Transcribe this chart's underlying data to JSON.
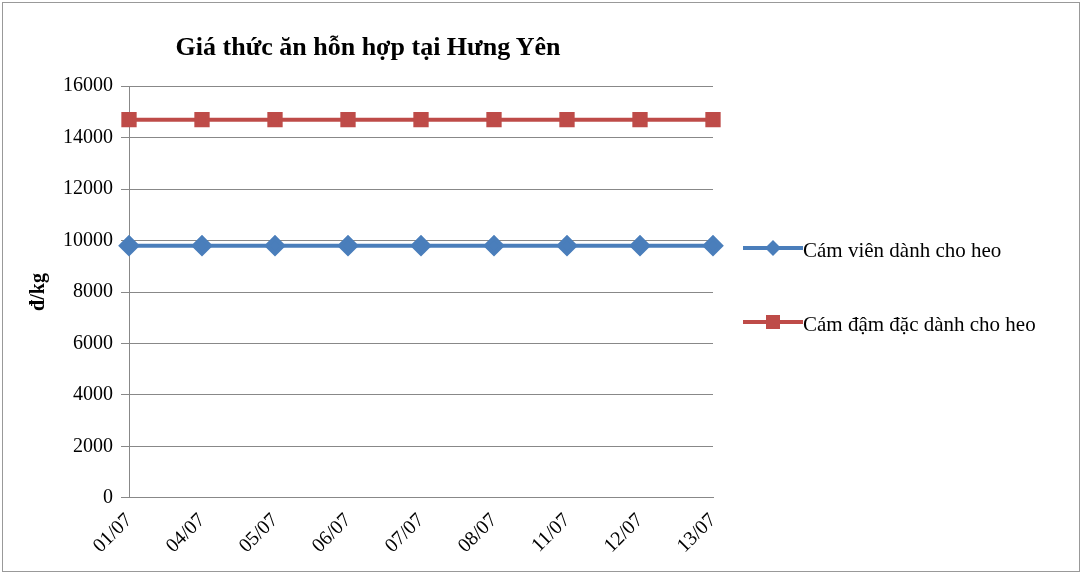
{
  "chart_data": {
    "type": "line",
    "title": "Giá thức ăn hỗn hợp tại Hưng Yên",
    "ylabel": "đ/kg",
    "categories": [
      "01/07",
      "04/07",
      "05/07",
      "06/07",
      "07/07",
      "08/07",
      "11/07",
      "12/07",
      "13/07"
    ],
    "series": [
      {
        "name": "Cám viên dành cho heo",
        "color": "#4a7ebb",
        "marker": "diamond",
        "values": [
          9800,
          9800,
          9800,
          9800,
          9800,
          9800,
          9800,
          9800,
          9800
        ]
      },
      {
        "name": "Cám đậm đặc dành cho heo",
        "color": "#be4b48",
        "marker": "square",
        "values": [
          14700,
          14700,
          14700,
          14700,
          14700,
          14700,
          14700,
          14700,
          14700
        ]
      }
    ],
    "ylim": [
      0,
      16000
    ],
    "yticks": [
      0,
      2000,
      4000,
      6000,
      8000,
      10000,
      12000,
      14000,
      16000
    ],
    "grid": "y",
    "legend": "right"
  }
}
